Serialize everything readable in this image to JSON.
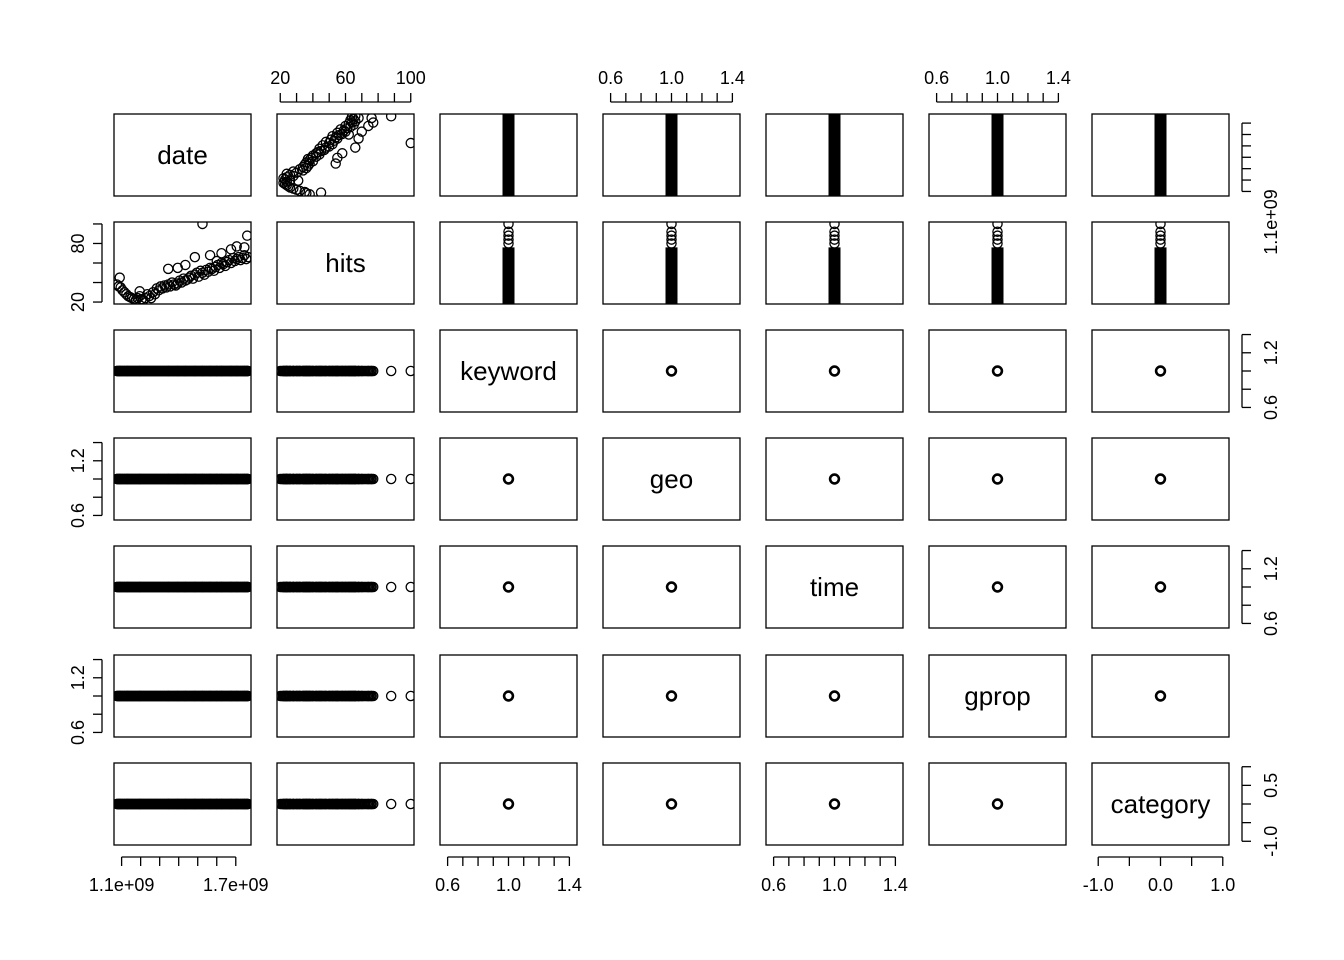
{
  "chart_data": {
    "type": "scatter",
    "subtype": "pairs-matrix",
    "variables": [
      "date",
      "hits",
      "keyword",
      "geo",
      "time",
      "gprop",
      "category"
    ],
    "ranges": {
      "date": [
        1060000000,
        1780000000
      ],
      "hits": [
        18,
        102
      ],
      "keyword": [
        0.55,
        1.45
      ],
      "geo": [
        0.55,
        1.45
      ],
      "time": [
        0.55,
        1.45
      ],
      "gprop": [
        0.55,
        1.45
      ],
      "category": [
        -1.1,
        1.1
      ]
    },
    "axes": {
      "top": [
        {
          "col": 1,
          "var": "hits",
          "labels": [
            "20",
            "60",
            "100"
          ],
          "label_values": [
            20,
            60,
            100
          ],
          "ticks": [
            20,
            30,
            40,
            50,
            60,
            70,
            80,
            90,
            100
          ]
        },
        {
          "col": 3,
          "var": "geo",
          "labels": [
            "0.6",
            "1.0",
            "1.4"
          ],
          "label_values": [
            0.6,
            1.0,
            1.4
          ],
          "ticks": [
            0.6,
            0.7,
            0.8,
            0.9,
            1.0,
            1.1,
            1.2,
            1.3,
            1.4
          ]
        },
        {
          "col": 5,
          "var": "gprop",
          "labels": [
            "0.6",
            "1.0",
            "1.4"
          ],
          "label_values": [
            0.6,
            1.0,
            1.4
          ],
          "ticks": [
            0.6,
            0.7,
            0.8,
            0.9,
            1.0,
            1.1,
            1.2,
            1.3,
            1.4
          ]
        }
      ],
      "bottom": [
        {
          "col": 0,
          "var": "date",
          "labels": [
            "1.1e+09",
            "1.7e+09"
          ],
          "label_values": [
            1100000000,
            1700000000
          ],
          "ticks": [
            1100000000,
            1200000000,
            1300000000,
            1400000000,
            1500000000,
            1600000000,
            1700000000
          ]
        },
        {
          "col": 2,
          "var": "keyword",
          "labels": [
            "0.6",
            "1.0",
            "1.4"
          ],
          "label_values": [
            0.6,
            1.0,
            1.4
          ],
          "ticks": [
            0.6,
            0.7,
            0.8,
            0.9,
            1.0,
            1.1,
            1.2,
            1.3,
            1.4
          ]
        },
        {
          "col": 4,
          "var": "time",
          "labels": [
            "0.6",
            "1.0",
            "1.4"
          ],
          "label_values": [
            0.6,
            1.0,
            1.4
          ],
          "ticks": [
            0.6,
            0.7,
            0.8,
            0.9,
            1.0,
            1.1,
            1.2,
            1.3,
            1.4
          ]
        },
        {
          "col": 6,
          "var": "category",
          "labels": [
            "-1.0",
            "0.0",
            "1.0"
          ],
          "label_values": [
            -1.0,
            0.0,
            1.0
          ],
          "ticks": [
            -1.0,
            -0.5,
            0.0,
            0.5,
            1.0
          ]
        }
      ],
      "left": [
        {
          "row": 1,
          "var": "hits",
          "labels": [
            "20",
            "80"
          ],
          "label_values": [
            20,
            80
          ],
          "ticks": [
            20,
            40,
            60,
            80,
            100
          ]
        },
        {
          "row": 3,
          "var": "geo",
          "labels": [
            "0.6",
            "1.2"
          ],
          "label_values": [
            0.6,
            1.2
          ],
          "ticks": [
            0.6,
            0.8,
            1.0,
            1.2,
            1.4
          ]
        },
        {
          "row": 5,
          "var": "gprop",
          "labels": [
            "0.6",
            "1.2"
          ],
          "label_values": [
            0.6,
            1.2
          ],
          "ticks": [
            0.6,
            0.8,
            1.0,
            1.2,
            1.4
          ]
        }
      ],
      "right": [
        {
          "row": 0,
          "var": "date",
          "labels": [
            "1.1e+09"
          ],
          "label_values": [
            1100000000
          ],
          "ticks": [
            1100000000,
            1200000000,
            1300000000,
            1400000000,
            1500000000,
            1600000000,
            1700000000
          ]
        },
        {
          "row": 2,
          "var": "keyword",
          "labels": [
            "0.6",
            "1.2"
          ],
          "label_values": [
            0.6,
            1.2
          ],
          "ticks": [
            0.6,
            0.8,
            1.0,
            1.2,
            1.4
          ]
        },
        {
          "row": 4,
          "var": "time",
          "labels": [
            "0.6",
            "1.2"
          ],
          "label_values": [
            0.6,
            1.2
          ],
          "ticks": [
            0.6,
            0.8,
            1.0,
            1.2,
            1.4
          ]
        },
        {
          "row": 6,
          "var": "category",
          "labels": [
            "-1.0",
            "0.5"
          ],
          "label_values": [
            -1.0,
            0.5
          ],
          "ticks": [
            -1.0,
            -0.5,
            0.0,
            0.5,
            1.0
          ]
        }
      ]
    },
    "constants": {
      "keyword": 1,
      "geo": 1,
      "time": 1,
      "gprop": 1,
      "category": 0
    },
    "series": [
      {
        "x_var": "date",
        "y_var": "hits",
        "x": [
          1075000000,
          1085000000,
          1095000000,
          1105000000,
          1115000000,
          1125000000,
          1135000000,
          1145000000,
          1155000000,
          1165000000,
          1175000000,
          1185000000,
          1195000000,
          1205000000,
          1215000000,
          1225000000,
          1235000000,
          1245000000,
          1255000000,
          1265000000,
          1275000000,
          1285000000,
          1295000000,
          1305000000,
          1315000000,
          1325000000,
          1335000000,
          1345000000,
          1355000000,
          1365000000,
          1375000000,
          1385000000,
          1395000000,
          1405000000,
          1415000000,
          1425000000,
          1435000000,
          1445000000,
          1455000000,
          1465000000,
          1475000000,
          1485000000,
          1495000000,
          1505000000,
          1515000000,
          1525000000,
          1535000000,
          1545000000,
          1555000000,
          1565000000,
          1575000000,
          1585000000,
          1595000000,
          1605000000,
          1615000000,
          1625000000,
          1635000000,
          1645000000,
          1655000000,
          1665000000,
          1675000000,
          1685000000,
          1695000000,
          1705000000,
          1715000000,
          1725000000,
          1735000000,
          1745000000,
          1755000000,
          1765000000
        ],
        "y": [
          38,
          36,
          35,
          32,
          30,
          28,
          26,
          25,
          24,
          23,
          22,
          24,
          26,
          23,
          22,
          24,
          28,
          26,
          24,
          30,
          28,
          34,
          32,
          36,
          34,
          37,
          35,
          38,
          36,
          40,
          38,
          37,
          39,
          42,
          40,
          44,
          42,
          43,
          45,
          47,
          44,
          48,
          50,
          46,
          52,
          50,
          48,
          53,
          51,
          55,
          54,
          52,
          56,
          58,
          55,
          60,
          59,
          57,
          61,
          63,
          60,
          65,
          62,
          64,
          66,
          63,
          65,
          68,
          64,
          66
        ]
      },
      {
        "x_var": "date",
        "y_var": "hits",
        "outliers": true,
        "x": [
          1090000000,
          1195000000,
          1345000000,
          1395000000,
          1435000000,
          1485000000,
          1525000000,
          1565000000,
          1600000000,
          1625000000,
          1675000000,
          1705000000,
          1745000000,
          1760000000
        ],
        "y": [
          45,
          31,
          54,
          55,
          58,
          66,
          100,
          68,
          62,
          70,
          74,
          77,
          76,
          88
        ]
      }
    ]
  }
}
